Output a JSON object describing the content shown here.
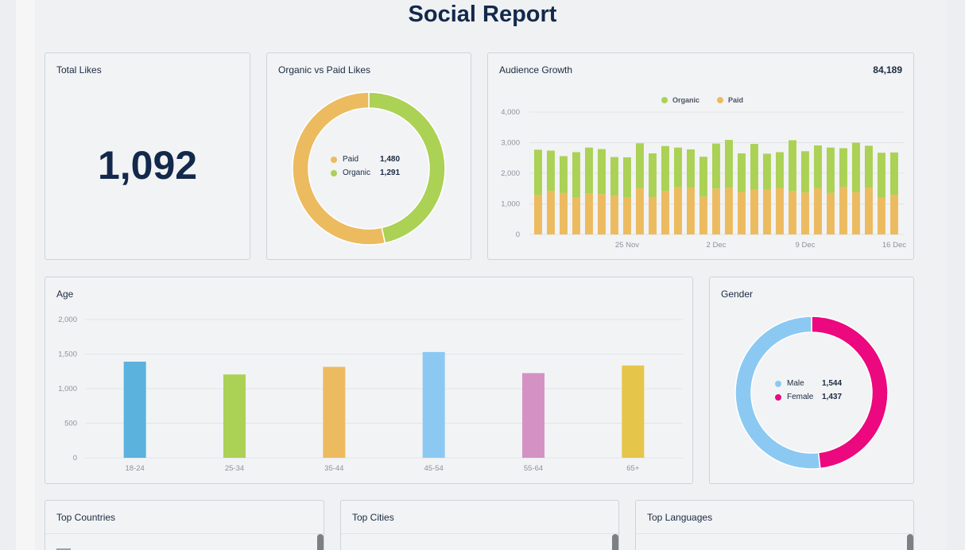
{
  "report": {
    "title": "Social Report"
  },
  "total_likes": {
    "title": "Total Likes",
    "value": "1,092"
  },
  "organic_vs_paid": {
    "title": "Organic vs Paid Likes",
    "legend": [
      {
        "label": "Paid",
        "value": "1,480",
        "color": "#ecbb60"
      },
      {
        "label": "Organic",
        "value": "1,291",
        "color": "#abd155"
      }
    ],
    "chart_data": {
      "type": "pie",
      "slices": [
        {
          "label": "Organic",
          "value": 1291,
          "color": "#abd155"
        },
        {
          "label": "Paid",
          "value": 1480,
          "color": "#ecbb60"
        }
      ]
    }
  },
  "audience_growth": {
    "title": "Audience Growth",
    "total": "84,189",
    "legend": [
      {
        "label": "Organic",
        "color": "#abd155"
      },
      {
        "label": "Paid",
        "color": "#ecbb60"
      }
    ],
    "chart_data": {
      "type": "bar",
      "stacked": true,
      "ylim": [
        0,
        4000
      ],
      "yticks": [
        "0",
        "1,000",
        "2,000",
        "3,000",
        "4,000"
      ],
      "xticks": [
        {
          "label": "25 Nov",
          "index": 7
        },
        {
          "label": "2 Dec",
          "index": 14
        },
        {
          "label": "9 Dec",
          "index": 21
        },
        {
          "label": "16 Dec",
          "index": 28
        }
      ],
      "series": [
        {
          "name": "Paid",
          "color": "#ecbb60",
          "values": [
            1300,
            1430,
            1360,
            1220,
            1340,
            1320,
            1270,
            1220,
            1520,
            1220,
            1420,
            1540,
            1530,
            1230,
            1500,
            1530,
            1390,
            1460,
            1480,
            1520,
            1420,
            1370,
            1510,
            1360,
            1560,
            1380,
            1530,
            1200,
            1300
          ]
        },
        {
          "name": "Organic",
          "color": "#abd155",
          "values": [
            1470,
            1310,
            1200,
            1470,
            1500,
            1470,
            1260,
            1300,
            1460,
            1430,
            1470,
            1300,
            1250,
            1310,
            1470,
            1560,
            1260,
            1500,
            1160,
            1170,
            1660,
            1350,
            1400,
            1480,
            1260,
            1620,
            1370,
            1470,
            1380
          ]
        }
      ]
    }
  },
  "age": {
    "title": "Age",
    "chart_data": {
      "type": "bar",
      "ylim": [
        0,
        2000
      ],
      "yticks": [
        "0",
        "500",
        "1,000",
        "1,500",
        "2,000"
      ],
      "categories": [
        "18-24",
        "25-34",
        "35-44",
        "45-54",
        "55-64",
        "65+"
      ],
      "values": [
        1390,
        1205,
        1315,
        1530,
        1225,
        1335
      ],
      "colors": [
        "#5ab2dd",
        "#abd155",
        "#ecbb60",
        "#8bc9f3",
        "#d392c3",
        "#e5c64a"
      ]
    }
  },
  "gender": {
    "title": "Gender",
    "legend": [
      {
        "label": "Male",
        "value": "1,544",
        "color": "#8bc9f3"
      },
      {
        "label": "Female",
        "value": "1,437",
        "color": "#ec087e"
      }
    ],
    "chart_data": {
      "type": "pie",
      "slices": [
        {
          "label": "Female",
          "value": 1437,
          "color": "#ec087e"
        },
        {
          "label": "Male",
          "value": 1544,
          "color": "#8bc9f3"
        }
      ]
    }
  },
  "lists": {
    "countries": {
      "title": "Top Countries"
    },
    "cities": {
      "title": "Top Cities"
    },
    "languages": {
      "title": "Top Languages"
    }
  }
}
